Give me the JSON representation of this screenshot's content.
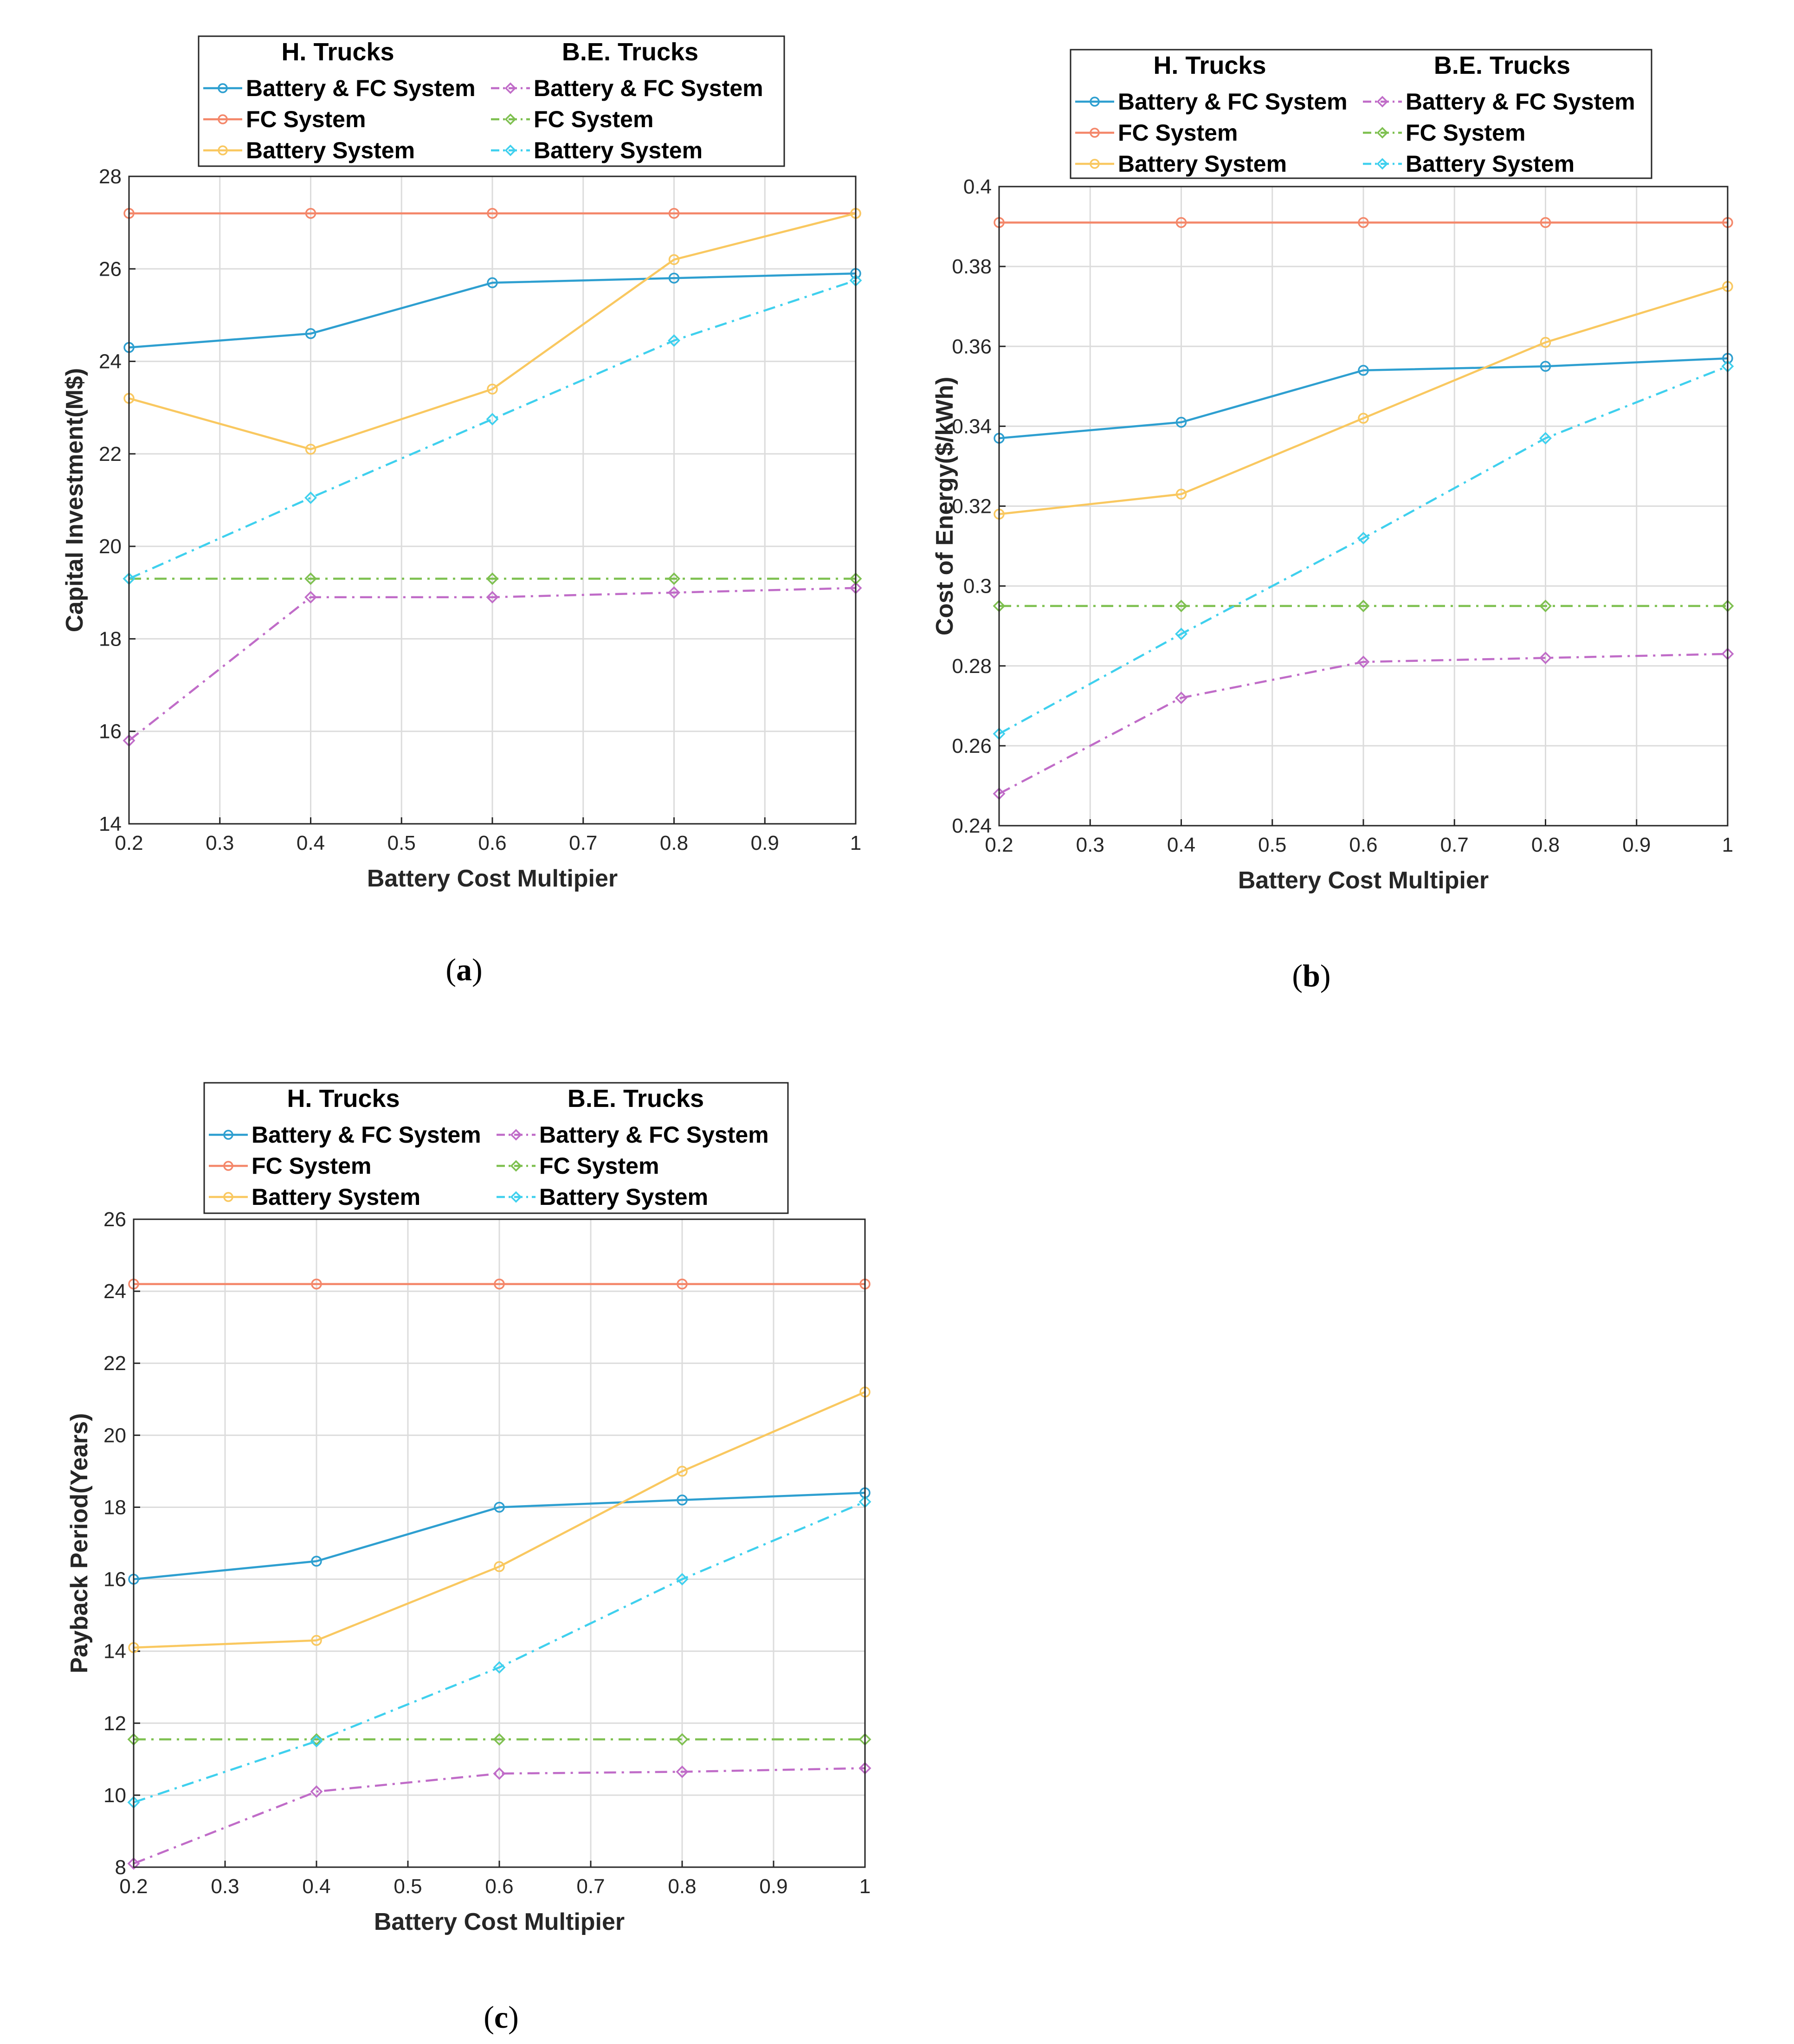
{
  "chart_data": [
    {
      "id": "a",
      "type": "line",
      "caption_letter": "a",
      "xlabel": "Battery Cost Multipier",
      "ylabel": "Capital Investment(M$)",
      "xlim": [
        0.2,
        1
      ],
      "ylim": [
        14,
        28
      ],
      "xticks": [
        "0.2",
        "0.3",
        "0.4",
        "0.5",
        "0.6",
        "0.7",
        "0.8",
        "0.9",
        "1"
      ],
      "yticks": [
        "14",
        "16",
        "18",
        "20",
        "22",
        "24",
        "26",
        "28"
      ],
      "grid": true,
      "legend_position": "top",
      "legend_headers": [
        "H. Trucks",
        "B.E. Trucks"
      ],
      "x": [
        0.2,
        0.4,
        0.6,
        0.8,
        1.0
      ],
      "series": [
        {
          "group": "H. Trucks",
          "name": "Battery & FC System",
          "color": "#2E9FD0",
          "style": "solid",
          "marker": "circle",
          "values": [
            24.3,
            24.6,
            25.7,
            25.8,
            25.9
          ]
        },
        {
          "group": "H. Trucks",
          "name": "FC System",
          "color": "#F4876A",
          "style": "solid",
          "marker": "circle",
          "values": [
            27.2,
            27.2,
            27.2,
            27.2,
            27.2
          ]
        },
        {
          "group": "H. Trucks",
          "name": "Battery System",
          "color": "#F9C860",
          "style": "solid",
          "marker": "circle",
          "values": [
            23.2,
            22.1,
            23.4,
            26.2,
            27.2
          ]
        },
        {
          "group": "B.E. Trucks",
          "name": "Battery & FC System",
          "color": "#C06CC8",
          "style": "dashdot",
          "marker": "diamond",
          "values": [
            15.8,
            18.9,
            18.9,
            19.0,
            19.1
          ]
        },
        {
          "group": "B.E. Trucks",
          "name": "FC System",
          "color": "#7EC050",
          "style": "dashdot",
          "marker": "diamond",
          "values": [
            19.3,
            19.3,
            19.3,
            19.3,
            19.3
          ]
        },
        {
          "group": "B.E. Trucks",
          "name": "Battery System",
          "color": "#3FD0EE",
          "style": "dashdot",
          "marker": "diamond",
          "values": [
            19.3,
            21.05,
            22.75,
            24.45,
            25.75
          ]
        }
      ]
    },
    {
      "id": "b",
      "type": "line",
      "caption_letter": "b",
      "xlabel": "Battery Cost Multipier",
      "ylabel": "Cost of Energy($/kWh)",
      "xlim": [
        0.2,
        1
      ],
      "ylim": [
        0.24,
        0.4
      ],
      "xticks": [
        "0.2",
        "0.3",
        "0.4",
        "0.5",
        "0.6",
        "0.7",
        "0.8",
        "0.9",
        "1"
      ],
      "yticks": [
        "0.24",
        "0.26",
        "0.28",
        "0.3",
        "0.32",
        "0.34",
        "0.36",
        "0.38",
        "0.4"
      ],
      "grid": true,
      "legend_position": "top",
      "legend_headers": [
        "H. Trucks",
        "B.E. Trucks"
      ],
      "x": [
        0.2,
        0.4,
        0.6,
        0.8,
        1.0
      ],
      "series": [
        {
          "group": "H. Trucks",
          "name": "Battery & FC System",
          "color": "#2E9FD0",
          "style": "solid",
          "marker": "circle",
          "values": [
            0.337,
            0.341,
            0.354,
            0.355,
            0.357
          ]
        },
        {
          "group": "H. Trucks",
          "name": "FC System",
          "color": "#F4876A",
          "style": "solid",
          "marker": "circle",
          "values": [
            0.391,
            0.391,
            0.391,
            0.391,
            0.391
          ]
        },
        {
          "group": "H. Trucks",
          "name": "Battery System",
          "color": "#F9C860",
          "style": "solid",
          "marker": "circle",
          "values": [
            0.318,
            0.323,
            0.342,
            0.361,
            0.375
          ]
        },
        {
          "group": "B.E. Trucks",
          "name": "Battery & FC System",
          "color": "#C06CC8",
          "style": "dashdot",
          "marker": "diamond",
          "values": [
            0.248,
            0.272,
            0.281,
            0.282,
            0.283
          ]
        },
        {
          "group": "B.E. Trucks",
          "name": "FC System",
          "color": "#7EC050",
          "style": "dashdot",
          "marker": "diamond",
          "values": [
            0.295,
            0.295,
            0.295,
            0.295,
            0.295
          ]
        },
        {
          "group": "B.E. Trucks",
          "name": "Battery System",
          "color": "#3FD0EE",
          "style": "dashdot",
          "marker": "diamond",
          "values": [
            0.263,
            0.288,
            0.312,
            0.337,
            0.355
          ]
        }
      ]
    },
    {
      "id": "c",
      "type": "line",
      "caption_letter": "c",
      "xlabel": "Battery Cost Multipier",
      "ylabel": "Payback Period(Years)",
      "xlim": [
        0.2,
        1
      ],
      "ylim": [
        8,
        26
      ],
      "xticks": [
        "0.2",
        "0.3",
        "0.4",
        "0.5",
        "0.6",
        "0.7",
        "0.8",
        "0.9",
        "1"
      ],
      "yticks": [
        "8",
        "10",
        "12",
        "14",
        "16",
        "18",
        "20",
        "22",
        "24",
        "26"
      ],
      "grid": true,
      "legend_position": "top",
      "legend_headers": [
        "H. Trucks",
        "B.E. Trucks"
      ],
      "x": [
        0.2,
        0.4,
        0.6,
        0.8,
        1.0
      ],
      "series": [
        {
          "group": "H. Trucks",
          "name": "Battery & FC System",
          "color": "#2E9FD0",
          "style": "solid",
          "marker": "circle",
          "values": [
            16.0,
            16.5,
            18.0,
            18.2,
            18.4
          ]
        },
        {
          "group": "H. Trucks",
          "name": "FC System",
          "color": "#F4876A",
          "style": "solid",
          "marker": "circle",
          "values": [
            24.2,
            24.2,
            24.2,
            24.2,
            24.2
          ]
        },
        {
          "group": "H. Trucks",
          "name": "Battery System",
          "color": "#F9C860",
          "style": "solid",
          "marker": "circle",
          "values": [
            14.1,
            14.3,
            16.35,
            19.0,
            21.2
          ]
        },
        {
          "group": "B.E. Trucks",
          "name": "Battery & FC System",
          "color": "#C06CC8",
          "style": "dashdot",
          "marker": "diamond",
          "values": [
            8.1,
            10.1,
            10.6,
            10.65,
            10.75
          ]
        },
        {
          "group": "B.E. Trucks",
          "name": "FC System",
          "color": "#7EC050",
          "style": "dashdot",
          "marker": "diamond",
          "values": [
            11.55,
            11.55,
            11.55,
            11.55,
            11.55
          ]
        },
        {
          "group": "B.E. Trucks",
          "name": "Battery System",
          "color": "#3FD0EE",
          "style": "dashdot",
          "marker": "diamond",
          "values": [
            9.8,
            11.5,
            13.55,
            16.0,
            18.15
          ]
        }
      ]
    }
  ]
}
